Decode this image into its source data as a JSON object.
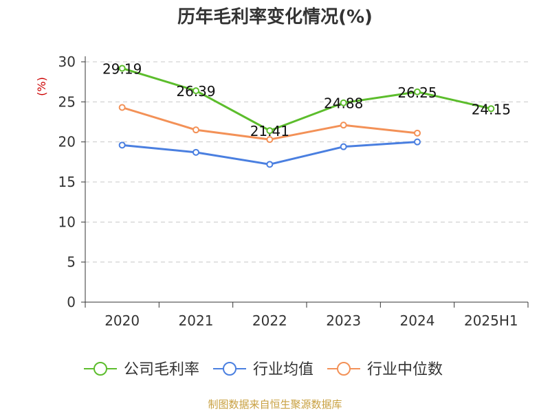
{
  "chart_data": {
    "type": "line",
    "title": "历年毛利率变化情况(%)",
    "ylabel": "(%)",
    "xlabel": "",
    "categories": [
      "2020",
      "2021",
      "2022",
      "2023",
      "2024",
      "2025H1"
    ],
    "ylim": [
      0,
      30
    ],
    "yticks": [
      0,
      5,
      10,
      15,
      20,
      25,
      30
    ],
    "grid": true,
    "legend_position": "bottom",
    "series": [
      {
        "name": "公司毛利率",
        "color": "#5cbd2c",
        "show_labels": true,
        "values": [
          29.19,
          26.39,
          21.41,
          24.88,
          26.25,
          24.15
        ],
        "labels": [
          "29.19",
          "26.39",
          "21.41",
          "24.88",
          "26.25",
          "24.15"
        ]
      },
      {
        "name": "行业均值",
        "color": "#4a7fe0",
        "show_labels": false,
        "values": [
          19.6,
          18.7,
          17.2,
          19.4,
          20.0,
          null
        ]
      },
      {
        "name": "行业中位数",
        "color": "#f39157",
        "show_labels": false,
        "values": [
          24.3,
          21.5,
          20.3,
          22.1,
          21.1,
          null
        ]
      }
    ]
  },
  "footer": {
    "source": "制图数据来自恒生聚源数据库"
  }
}
